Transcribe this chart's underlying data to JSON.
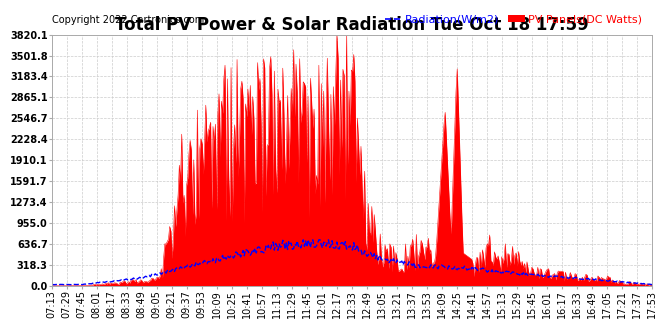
{
  "title": "Total PV Power & Solar Radiation Tue Oct 18 17:59",
  "copyright": "Copyright 2022 Cartronics.com",
  "legend_radiation": "Radiation(W/m2)",
  "legend_pv": "PV Panels(DC Watts)",
  "legend_radiation_color": "blue",
  "legend_pv_color": "red",
  "yticks": [
    0.0,
    318.3,
    636.7,
    955.0,
    1273.4,
    1591.7,
    1910.1,
    2228.4,
    2546.7,
    2865.1,
    3183.4,
    3501.8,
    3820.1
  ],
  "ymax": 3820.1,
  "ymin": 0.0,
  "bg_color": "#ffffff",
  "grid_color": "#cccccc",
  "fill_color": "red",
  "line_color": "blue",
  "title_fontsize": 12,
  "copyright_fontsize": 7,
  "tick_fontsize": 7,
  "legend_fontsize": 8
}
